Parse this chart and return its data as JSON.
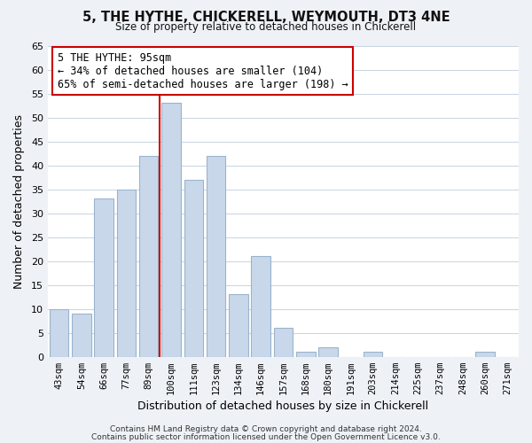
{
  "title": "5, THE HYTHE, CHICKERELL, WEYMOUTH, DT3 4NE",
  "subtitle": "Size of property relative to detached houses in Chickerell",
  "xlabel": "Distribution of detached houses by size in Chickerell",
  "ylabel": "Number of detached properties",
  "bar_labels": [
    "43sqm",
    "54sqm",
    "66sqm",
    "77sqm",
    "89sqm",
    "100sqm",
    "111sqm",
    "123sqm",
    "134sqm",
    "146sqm",
    "157sqm",
    "168sqm",
    "180sqm",
    "191sqm",
    "203sqm",
    "214sqm",
    "225sqm",
    "237sqm",
    "248sqm",
    "260sqm",
    "271sqm"
  ],
  "bar_values": [
    10,
    9,
    33,
    35,
    42,
    53,
    37,
    42,
    13,
    21,
    6,
    1,
    2,
    0,
    1,
    0,
    0,
    0,
    0,
    1,
    0
  ],
  "bar_color": "#c8d8ea",
  "bar_edge_color": "#9ab4cc",
  "vline_x_index": 5,
  "vline_color": "#cc0000",
  "annotation_title": "5 THE HYTHE: 95sqm",
  "annotation_line1": "← 34% of detached houses are smaller (104)",
  "annotation_line2": "65% of semi-detached houses are larger (198) →",
  "annotation_box_color": "#ffffff",
  "annotation_box_edge": "#cc0000",
  "ylim": [
    0,
    65
  ],
  "yticks": [
    0,
    5,
    10,
    15,
    20,
    25,
    30,
    35,
    40,
    45,
    50,
    55,
    60,
    65
  ],
  "footer1": "Contains HM Land Registry data © Crown copyright and database right 2024.",
  "footer2": "Contains public sector information licensed under the Open Government Licence v3.0.",
  "bg_color": "#eef2f7",
  "plot_bg_color": "#ffffff",
  "grid_color": "#c8d4e0"
}
